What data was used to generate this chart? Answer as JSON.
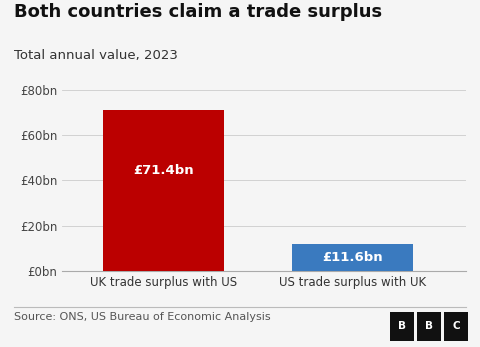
{
  "title": "Both countries claim a trade surplus",
  "subtitle": "Total annual value, 2023",
  "categories": [
    "UK trade surplus with US",
    "US trade surplus with UK"
  ],
  "values": [
    71.4,
    11.6
  ],
  "bar_colors": [
    "#bb0000",
    "#3a7abf"
  ],
  "bar_labels": [
    "£71.4bn",
    "£11.6bn"
  ],
  "yticks": [
    0,
    20,
    40,
    60,
    80
  ],
  "ytick_labels": [
    "£0bn",
    "£20bn",
    "£40bn",
    "£60bn",
    "£80bn"
  ],
  "ylim": [
    0,
    80
  ],
  "source_text": "Source: ONS, US Bureau of Economic Analysis",
  "background_color": "#f5f5f5",
  "title_fontsize": 13,
  "subtitle_fontsize": 9.5,
  "label_fontsize": 9.5,
  "tick_fontsize": 8.5,
  "source_fontsize": 8
}
